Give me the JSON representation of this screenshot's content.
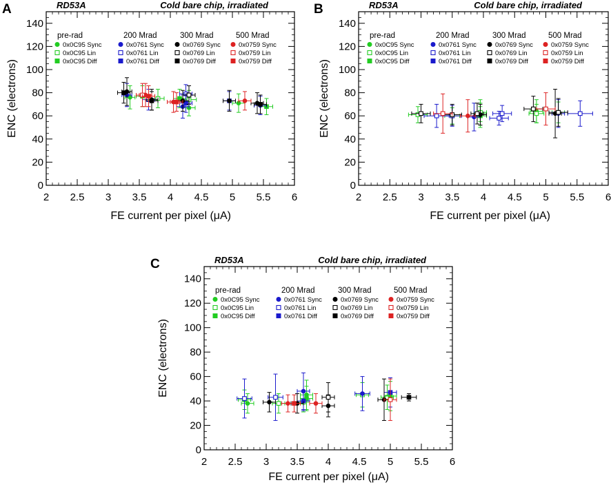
{
  "chart_data": [
    {
      "panel": "A",
      "type": "scatter",
      "title_left": "RD53A",
      "title_right": "Cold bare chip, irradiated",
      "xlabel": "FE current per pixel (μA)",
      "ylabel": "ENC (electrons)",
      "xlim": [
        2,
        6
      ],
      "ylim": [
        0,
        150
      ],
      "xticks": [
        "2",
        "2.5",
        "3",
        "3.5",
        "4",
        "4.5",
        "5",
        "5.5",
        "6"
      ],
      "yticks": [
        "0",
        "20",
        "40",
        "60",
        "80",
        "100",
        "120",
        "140"
      ],
      "legend_headers": [
        "pre-rad",
        "200 Mrad",
        "300 Mrad",
        "500 Mrad"
      ],
      "series": [
        {
          "name": "0x0C95 Sync",
          "color": "#22cc22",
          "marker": "circle",
          "points": [
            [
              3.35,
              76,
              0.08,
              10
            ],
            [
              4.3,
              67,
              0.1,
              7
            ],
            [
              5.1,
              71,
              0.1,
              8
            ]
          ]
        },
        {
          "name": "0x0C95 Lin",
          "color": "#22cc22",
          "marker": "square-open",
          "points": [
            [
              3.8,
              75,
              0.1,
              8
            ],
            [
              4.3,
              74,
              0.12,
              8
            ]
          ]
        },
        {
          "name": "0x0C95 Diff",
          "color": "#22cc22",
          "marker": "square",
          "points": [
            [
              3.55,
              77,
              0.1,
              9
            ],
            [
              4.15,
              75,
              0.1,
              8
            ],
            [
              5.55,
              68,
              0.1,
              7
            ]
          ]
        },
        {
          "name": "0x0761 Sync",
          "color": "#1a1acc",
          "marker": "circle",
          "points": [
            [
              3.3,
              78,
              0.08,
              10
            ],
            [
              4.2,
              68,
              0.1,
              10
            ],
            [
              5.45,
              69,
              0.1,
              8
            ]
          ]
        },
        {
          "name": "0x0761 Lin",
          "color": "#1a1acc",
          "marker": "square-open",
          "points": [
            [
              3.65,
              74,
              0.1,
              9
            ],
            [
              4.25,
              79,
              0.1,
              8
            ]
          ]
        },
        {
          "name": "0x0761 Diff",
          "color": "#1a1acc",
          "marker": "square",
          "points": [
            [
              4.25,
              71,
              0.1,
              8
            ],
            [
              4.95,
              73,
              0.1,
              8
            ]
          ]
        },
        {
          "name": "0x0769 Sync",
          "color": "#000000",
          "marker": "circle",
          "points": [
            [
              3.3,
              81,
              0.08,
              12
            ],
            [
              3.7,
              74,
              0.1,
              9
            ],
            [
              4.2,
              73,
              0.1,
              9
            ],
            [
              4.95,
              73,
              0.1,
              9
            ],
            [
              5.4,
              71,
              0.1,
              9
            ]
          ]
        },
        {
          "name": "0x0769 Lin",
          "color": "#000000",
          "marker": "square-open",
          "points": [
            [
              4.3,
              78,
              0.1,
              8
            ]
          ]
        },
        {
          "name": "0x0769 Diff",
          "color": "#000000",
          "marker": "square",
          "points": [
            [
              3.25,
              80,
              0.1,
              9
            ],
            [
              3.7,
              73,
              0.1,
              8
            ],
            [
              5.45,
              70,
              0.1,
              8
            ]
          ]
        },
        {
          "name": "0x0759 Sync",
          "color": "#dd2222",
          "marker": "circle",
          "points": [
            [
              3.6,
              78,
              0.1,
              10
            ],
            [
              4.05,
              72,
              0.1,
              9
            ],
            [
              5.2,
              73,
              0.1,
              8
            ]
          ]
        },
        {
          "name": "0x0759 Lin",
          "color": "#dd2222",
          "marker": "square-open",
          "points": [
            [
              3.55,
              78,
              0.1,
              10
            ]
          ]
        },
        {
          "name": "0x0759 Diff",
          "color": "#dd2222",
          "marker": "square",
          "points": [
            [
              3.65,
              77,
              0.1,
              9
            ],
            [
              4.1,
              72,
              0.1,
              8
            ]
          ]
        }
      ]
    },
    {
      "panel": "B",
      "type": "scatter",
      "title_left": "RD53A",
      "title_right": "Cold bare chip, irradiated",
      "xlabel": "FE current per pixel (μA)",
      "ylabel": "ENC (electrons)",
      "xlim": [
        2,
        6
      ],
      "ylim": [
        0,
        150
      ],
      "xticks": [
        "2",
        "2.5",
        "3",
        "3.5",
        "4",
        "4.5",
        "5",
        "5.5",
        "6"
      ],
      "yticks": [
        "0",
        "20",
        "40",
        "60",
        "80",
        "100",
        "120",
        "140"
      ],
      "legend_headers": [
        "pre-rad",
        "200 Mrad",
        "300 Mrad",
        "500 Mrad"
      ],
      "series": [
        {
          "name": "0x0C95 Sync",
          "color": "#22cc22",
          "marker": "circle",
          "points": [
            [
              3.95,
              62,
              0.1,
              12
            ],
            [
              4.85,
              64,
              0.1,
              10
            ]
          ]
        },
        {
          "name": "0x0C95 Lin",
          "color": "#22cc22",
          "marker": "square-open",
          "points": [
            [
              2.95,
              61,
              0.15,
              7
            ],
            [
              3.5,
              60,
              0.12,
              7
            ],
            [
              3.95,
              63,
              0.1,
              8
            ],
            [
              4.85,
              62,
              0.12,
              8
            ]
          ]
        },
        {
          "name": "0x0C95 Diff",
          "color": "#22cc22",
          "marker": "square",
          "points": [
            [
              3.95,
              60,
              0.1,
              8
            ],
            [
              5.2,
              63,
              0.1,
              9
            ]
          ]
        },
        {
          "name": "0x0761 Sync",
          "color": "#1a1acc",
          "marker": "circle",
          "points": [
            [
              3.85,
              59,
              0.1,
              12
            ],
            [
              5.2,
              62,
              0.1,
              12
            ]
          ]
        },
        {
          "name": "0x0761 Lin",
          "color": "#1a1acc",
          "marker": "square-open",
          "points": [
            [
              3.25,
              60,
              0.2,
              10
            ],
            [
              3.5,
              60,
              0.15,
              9
            ],
            [
              4.3,
              62,
              0.15,
              7
            ],
            [
              4.25,
              58,
              0.15,
              6
            ],
            [
              5.55,
              62,
              0.2,
              11
            ]
          ]
        },
        {
          "name": "0x0761 Diff",
          "color": "#1a1acc",
          "marker": "square",
          "points": []
        },
        {
          "name": "0x0769 Sync",
          "color": "#000000",
          "marker": "circle",
          "points": [
            [
              3.95,
              61,
              0.1,
              9
            ],
            [
              5.15,
              62,
              0.1,
              21
            ]
          ]
        },
        {
          "name": "0x0769 Lin",
          "color": "#000000",
          "marker": "square-open",
          "points": [
            [
              3.0,
              62,
              0.15,
              8
            ],
            [
              3.5,
              61,
              0.15,
              9
            ],
            [
              3.9,
              62,
              0.1,
              9
            ],
            [
              4.8,
              66,
              0.15,
              11
            ],
            [
              5.2,
              63,
              0.15,
              12
            ]
          ]
        },
        {
          "name": "0x0769 Diff",
          "color": "#000000",
          "marker": "square",
          "points": []
        },
        {
          "name": "0x0759 Sync",
          "color": "#dd2222",
          "marker": "circle",
          "points": [
            [
              3.75,
              60,
              0.12,
              14
            ]
          ]
        },
        {
          "name": "0x0759 Lin",
          "color": "#dd2222",
          "marker": "square-open",
          "points": [
            [
              3.35,
              62,
              0.15,
              17
            ],
            [
              5.0,
              66,
              0.15,
              14
            ]
          ]
        },
        {
          "name": "0x0759 Diff",
          "color": "#dd2222",
          "marker": "square",
          "points": []
        }
      ]
    },
    {
      "panel": "C",
      "type": "scatter",
      "title_left": "RD53A",
      "title_right": "Cold bare chip, irradiated",
      "xlabel": "FE current per pixel (μA)",
      "ylabel": "ENC (electrons)",
      "xlim": [
        2,
        6
      ],
      "ylim": [
        0,
        150
      ],
      "xticks": [
        "2",
        "2.5",
        "3",
        "3.5",
        "4",
        "4.5",
        "5",
        "5.5",
        "6"
      ],
      "yticks": [
        "0",
        "20",
        "40",
        "60",
        "80",
        "100",
        "120",
        "140"
      ],
      "legend_headers": [
        "pre-rad",
        "200 Mrad",
        "300 Mrad",
        "500 Mrad"
      ],
      "series": [
        {
          "name": "0x0C95 Sync",
          "color": "#22cc22",
          "marker": "circle",
          "points": [
            [
              2.7,
              38,
              0.1,
              8
            ],
            [
              3.65,
              45,
              0.1,
              12
            ]
          ]
        },
        {
          "name": "0x0C95 Lin",
          "color": "#22cc22",
          "marker": "square-open",
          "points": [
            [
              3.2,
              38,
              0.1,
              8
            ],
            [
              3.6,
              39,
              0.1,
              8
            ],
            [
              4.55,
              45,
              0.1,
              10
            ],
            [
              4.95,
              43,
              0.1,
              10
            ]
          ]
        },
        {
          "name": "0x0C95 Diff",
          "color": "#22cc22",
          "marker": "square",
          "points": [
            [
              2.65,
              41,
              0.1,
              8
            ],
            [
              3.65,
              42,
              0.1,
              10
            ],
            [
              5.0,
              44,
              0.1,
              12
            ]
          ]
        },
        {
          "name": "0x0761 Sync",
          "color": "#1a1acc",
          "marker": "circle",
          "points": [
            [
              3.6,
              48,
              0.1,
              15
            ],
            [
              4.55,
              46,
              0.12,
              14
            ]
          ]
        },
        {
          "name": "0x0761 Lin",
          "color": "#1a1acc",
          "marker": "square-open",
          "points": [
            [
              2.65,
              42,
              0.12,
              16
            ],
            [
              3.15,
              43,
              0.12,
              19
            ]
          ]
        },
        {
          "name": "0x0761 Diff",
          "color": "#1a1acc",
          "marker": "square",
          "points": [
            [
              3.6,
              40,
              0.1,
              8
            ],
            [
              5.0,
              47,
              0.1,
              12
            ]
          ]
        },
        {
          "name": "0x0769 Sync",
          "color": "#000000",
          "marker": "circle",
          "points": [
            [
              3.05,
              39,
              0.1,
              8
            ],
            [
              3.5,
              38,
              0.1,
              8
            ],
            [
              4.0,
              36,
              0.1,
              9
            ],
            [
              4.9,
              41,
              0.1,
              17
            ]
          ]
        },
        {
          "name": "0x0769 Lin",
          "color": "#000000",
          "marker": "square-open",
          "points": [
            [
              4.0,
              43,
              0.1,
              12
            ]
          ]
        },
        {
          "name": "0x0769 Diff",
          "color": "#000000",
          "marker": "square",
          "points": [
            [
              5.3,
              43,
              0.12,
              3
            ]
          ]
        },
        {
          "name": "0x0759 Sync",
          "color": "#dd2222",
          "marker": "circle",
          "points": [
            [
              3.35,
              38,
              0.1,
              7
            ],
            [
              3.8,
              38,
              0.1,
              8
            ]
          ]
        },
        {
          "name": "0x0759 Lin",
          "color": "#dd2222",
          "marker": "square-open",
          "points": [
            [
              5.0,
              41,
              0.1,
              17
            ]
          ]
        },
        {
          "name": "0x0759 Diff",
          "color": "#dd2222",
          "marker": "square",
          "points": [
            [
              3.45,
              38,
              0.1,
              7
            ]
          ]
        }
      ]
    }
  ]
}
